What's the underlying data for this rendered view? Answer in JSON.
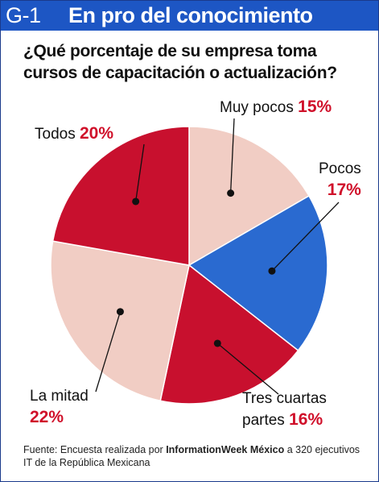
{
  "figure": {
    "number": "G-1",
    "title": "En pro del conocimiento",
    "question": "¿Qué porcentaje de su empresa toma cursos de capacitación o actualización?"
  },
  "source": {
    "prefix": "Fuente: Encuesta realizada por",
    "publisher": "InformationWeek México",
    "suffix": "a 320 ejecutivos IT de la República Mexicana"
  },
  "colors": {
    "header": "#1d56c4",
    "light": "#f1cdc4",
    "blue": "#2a6ad0",
    "red": "#c8102e",
    "percent_text": "#d0102a"
  },
  "chart_data": {
    "type": "pie",
    "unit": "%",
    "slices": [
      {
        "label": "Muy pocos",
        "value": 15,
        "value_label": "15%",
        "color": "#f1cdc4"
      },
      {
        "label": "Pocos",
        "value": 17,
        "value_label": "17%",
        "color": "#2a6ad0"
      },
      {
        "label": "Tres cuartas partes",
        "value": 16,
        "value_label": "16%",
        "color": "#c8102e"
      },
      {
        "label": "La mitad",
        "value": 22,
        "value_label": "22%",
        "color": "#f1cdc4"
      },
      {
        "label": "Todos",
        "value": 20,
        "value_label": "20%",
        "color": "#c8102e"
      }
    ]
  }
}
